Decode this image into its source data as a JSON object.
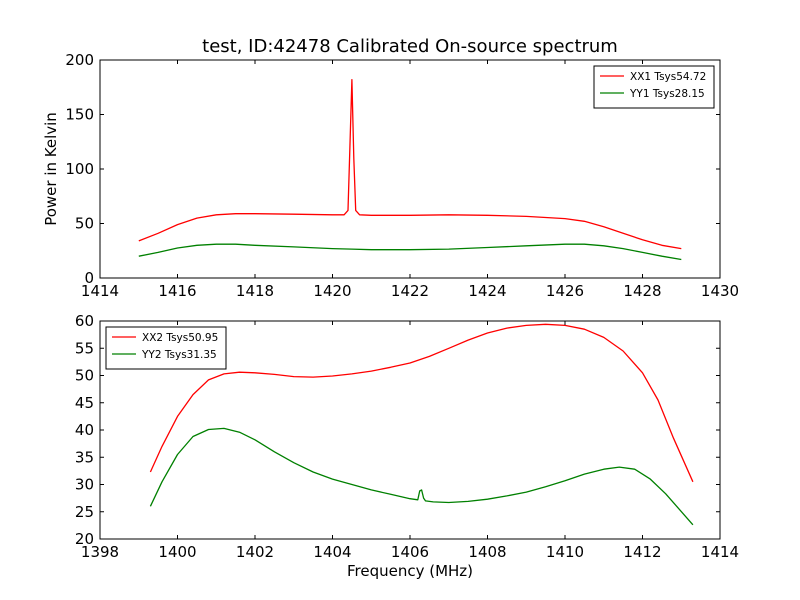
{
  "chart_data": {
    "title": "test, ID:42478 Calibrated On-source spectrum",
    "panels": [
      {
        "type": "line",
        "xlabel": "",
        "ylabel": "Power in Kelvin",
        "xlim": [
          1414,
          1430
        ],
        "ylim": [
          0,
          200
        ],
        "xticks": [
          1414,
          1416,
          1418,
          1420,
          1422,
          1424,
          1426,
          1428,
          1430
        ],
        "yticks": [
          0,
          50,
          100,
          150,
          200
        ],
        "legend": "top-right",
        "series": [
          {
            "name": "XX1 Tsys54.72",
            "color": "#ff0000",
            "x": [
              1415.0,
              1415.5,
              1416.0,
              1416.5,
              1417.0,
              1417.5,
              1418.0,
              1419.0,
              1420.0,
              1420.3,
              1420.4,
              1420.45,
              1420.5,
              1420.55,
              1420.6,
              1420.7,
              1421.0,
              1422.0,
              1423.0,
              1424.0,
              1425.0,
              1426.0,
              1426.5,
              1427.0,
              1427.5,
              1428.0,
              1428.5,
              1429.0
            ],
            "y": [
              34,
              41,
              49,
              55,
              58,
              59,
              59,
              58.5,
              58,
              58,
              62,
              120,
              182,
              110,
              62,
              58,
              57.5,
              57.5,
              58,
              57.5,
              56.5,
              54.5,
              52,
              47,
              41,
              35,
              30,
              27
            ]
          },
          {
            "name": "YY1 Tsys28.15",
            "color": "#008000",
            "x": [
              1415.0,
              1415.5,
              1416.0,
              1416.5,
              1417.0,
              1417.5,
              1418.0,
              1419.0,
              1420.0,
              1420.5,
              1421.0,
              1422.0,
              1423.0,
              1424.0,
              1425.0,
              1426.0,
              1426.5,
              1427.0,
              1427.5,
              1428.0,
              1428.5,
              1429.0
            ],
            "y": [
              20,
              23.5,
              27.5,
              30,
              31,
              31,
              30,
              28.5,
              27,
              26.5,
              26,
              26,
              26.5,
              28,
              29.5,
              31,
              31,
              29.5,
              27,
              23.5,
              20,
              17
            ]
          }
        ]
      },
      {
        "type": "line",
        "xlabel": "Frequency (MHz)",
        "ylabel": "",
        "xlim": [
          1398,
          1414
        ],
        "ylim": [
          20,
          60
        ],
        "xticks": [
          1398,
          1400,
          1402,
          1404,
          1406,
          1408,
          1410,
          1412,
          1414
        ],
        "yticks": [
          20,
          25,
          30,
          35,
          40,
          45,
          50,
          55,
          60
        ],
        "legend": "top-left",
        "series": [
          {
            "name": "XX2 Tsys50.95",
            "color": "#ff0000",
            "x": [
              1399.3,
              1399.6,
              1400.0,
              1400.4,
              1400.8,
              1401.2,
              1401.6,
              1402.0,
              1402.5,
              1403.0,
              1403.5,
              1404.0,
              1404.5,
              1405.0,
              1405.5,
              1406.0,
              1406.5,
              1407.0,
              1407.5,
              1408.0,
              1408.5,
              1409.0,
              1409.5,
              1410.0,
              1410.5,
              1411.0,
              1411.5,
              1412.0,
              1412.4,
              1412.8,
              1413.3
            ],
            "y": [
              32.3,
              37,
              42.5,
              46.5,
              49.2,
              50.3,
              50.6,
              50.5,
              50.2,
              49.8,
              49.7,
              49.9,
              50.3,
              50.8,
              51.5,
              52.3,
              53.5,
              55,
              56.5,
              57.8,
              58.7,
              59.2,
              59.4,
              59.2,
              58.5,
              57,
              54.5,
              50.5,
              45.5,
              38.5,
              30.5
            ]
          },
          {
            "name": "YY2 Tsys31.35",
            "color": "#008000",
            "x": [
              1399.3,
              1399.6,
              1400.0,
              1400.4,
              1400.8,
              1401.2,
              1401.6,
              1402.0,
              1402.5,
              1403.0,
              1403.5,
              1404.0,
              1404.5,
              1405.0,
              1405.5,
              1406.0,
              1406.2,
              1406.25,
              1406.3,
              1406.35,
              1406.4,
              1406.6,
              1407.0,
              1407.5,
              1408.0,
              1408.5,
              1409.0,
              1409.5,
              1410.0,
              1410.5,
              1411.0,
              1411.4,
              1411.8,
              1412.2,
              1412.6,
              1413.3
            ],
            "y": [
              26,
              30.5,
              35.5,
              38.8,
              40.1,
              40.3,
              39.6,
              38.2,
              36,
              34,
              32.3,
              31,
              30,
              29,
              28.2,
              27.4,
              27.2,
              28.8,
              29,
              27.5,
              27,
              26.8,
              26.7,
              26.9,
              27.3,
              27.9,
              28.6,
              29.6,
              30.7,
              31.9,
              32.8,
              33.2,
              32.8,
              31,
              28.3,
              22.6
            ]
          }
        ]
      }
    ]
  }
}
